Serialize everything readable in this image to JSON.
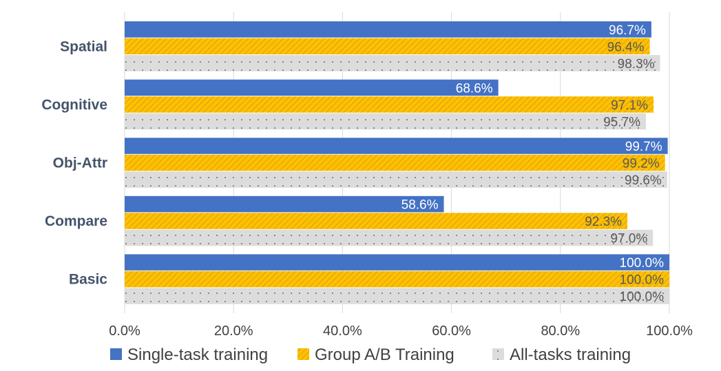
{
  "chart_data": {
    "type": "bar",
    "orientation": "horizontal",
    "categories": [
      "Spatial",
      "Cognitive",
      "Obj-Attr",
      "Compare",
      "Basic"
    ],
    "series": [
      {
        "name": "Single-task training",
        "values": [
          96.7,
          68.6,
          99.7,
          58.6,
          100.0
        ],
        "labels": [
          "96.7%",
          "68.6%",
          "99.7%",
          "58.6%",
          "100.0%"
        ],
        "color": "#4472c4",
        "pattern": "solid"
      },
      {
        "name": "Group A/B Training",
        "values": [
          96.4,
          97.1,
          99.2,
          92.3,
          100.0
        ],
        "labels": [
          "96.4%",
          "97.1%",
          "99.2%",
          "92.3%",
          "100.0%"
        ],
        "color": "#ffc000",
        "pattern": "diagonal-hatch"
      },
      {
        "name": "All-tasks training",
        "values": [
          98.3,
          95.7,
          99.6,
          97.0,
          100.0
        ],
        "labels": [
          "98.3%",
          "95.7%",
          "99.6%",
          "97.0%",
          "100.0%"
        ],
        "color": "#d9d9d9",
        "pattern": "dotted"
      }
    ],
    "x_ticks": [
      "0.0%",
      "20.0%",
      "40.0%",
      "60.0%",
      "80.0%",
      "100.0%"
    ],
    "xlim": [
      0,
      100
    ],
    "grid": true,
    "legend": "bottom"
  }
}
